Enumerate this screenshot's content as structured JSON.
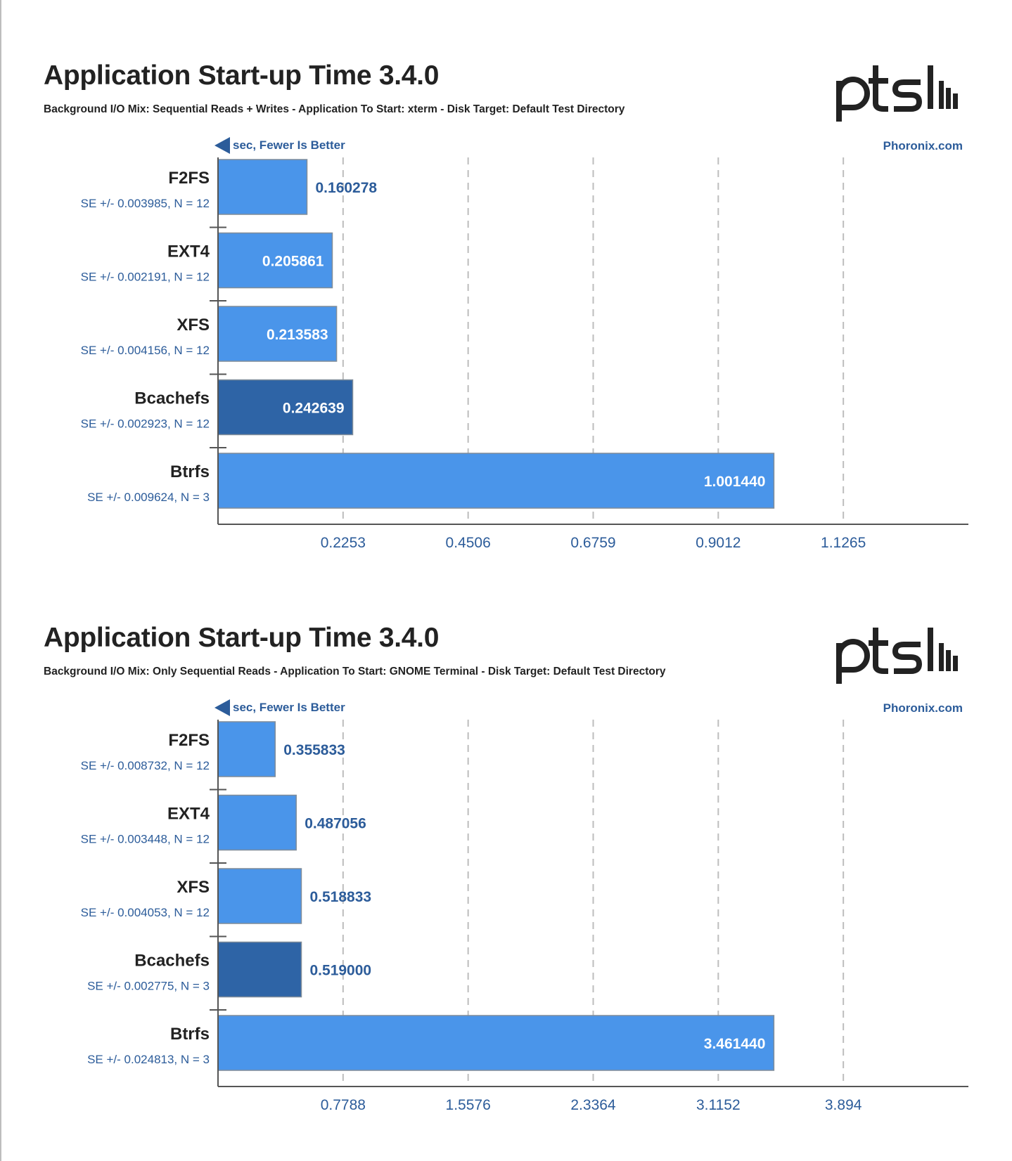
{
  "chart_data": [
    {
      "type": "bar",
      "orientation": "horizontal",
      "title": "Application Start-up Time 3.4.0",
      "subtitle": "Background I/O Mix: Sequential Reads + Writes - Application To Start: xterm - Disk Target: Default Test Directory",
      "direction_label": "sec, Fewer Is Better",
      "source": "Phoronix.com",
      "logo_text": "ptsh",
      "categories": [
        "F2FS",
        "EXT4",
        "XFS",
        "Bcachefs",
        "Btrfs"
      ],
      "values": [
        0.160278,
        0.205861,
        0.213583,
        0.242639,
        1.00144
      ],
      "value_labels": [
        "0.160278",
        "0.205861",
        "0.213583",
        "0.242639",
        "1.001440"
      ],
      "se_labels": [
        "SE +/- 0.003985, N = 12",
        "SE +/- 0.002191, N = 12",
        "SE +/- 0.004156, N = 12",
        "SE +/- 0.002923, N = 12",
        "SE +/- 0.009624, N = 3"
      ],
      "highlight_index": 3,
      "ticks": [
        0.2253,
        0.4506,
        0.6759,
        0.9012,
        1.1265
      ],
      "tick_labels": [
        "0.2253",
        "0.4506",
        "0.6759",
        "0.9012",
        "1.1265"
      ],
      "xlim": [
        0,
        1.3518
      ],
      "grid": true,
      "colors": {
        "bar": "#4a95ea",
        "highlight": "#2e64a6",
        "text": "#2c5c9a"
      }
    },
    {
      "type": "bar",
      "orientation": "horizontal",
      "title": "Application Start-up Time 3.4.0",
      "subtitle": "Background I/O Mix: Only Sequential Reads - Application To Start: GNOME Terminal - Disk Target: Default Test Directory",
      "direction_label": "sec, Fewer Is Better",
      "source": "Phoronix.com",
      "logo_text": "ptsh",
      "categories": [
        "F2FS",
        "EXT4",
        "XFS",
        "Bcachefs",
        "Btrfs"
      ],
      "values": [
        0.355833,
        0.487056,
        0.518833,
        0.519,
        3.46144
      ],
      "value_labels": [
        "0.355833",
        "0.487056",
        "0.518833",
        "0.519000",
        "3.461440"
      ],
      "se_labels": [
        "SE +/- 0.008732, N = 12",
        "SE +/- 0.003448, N = 12",
        "SE +/- 0.004053, N = 12",
        "SE +/- 0.002775, N = 3",
        "SE +/- 0.024813, N = 3"
      ],
      "highlight_index": 3,
      "ticks": [
        0.7788,
        1.5576,
        2.3364,
        3.1152,
        3.894
      ],
      "tick_labels": [
        "0.7788",
        "1.5576",
        "2.3364",
        "3.1152",
        "3.894"
      ],
      "xlim": [
        0,
        4.6728
      ],
      "grid": true,
      "colors": {
        "bar": "#4a95ea",
        "highlight": "#2e64a6",
        "text": "#2c5c9a"
      }
    }
  ]
}
